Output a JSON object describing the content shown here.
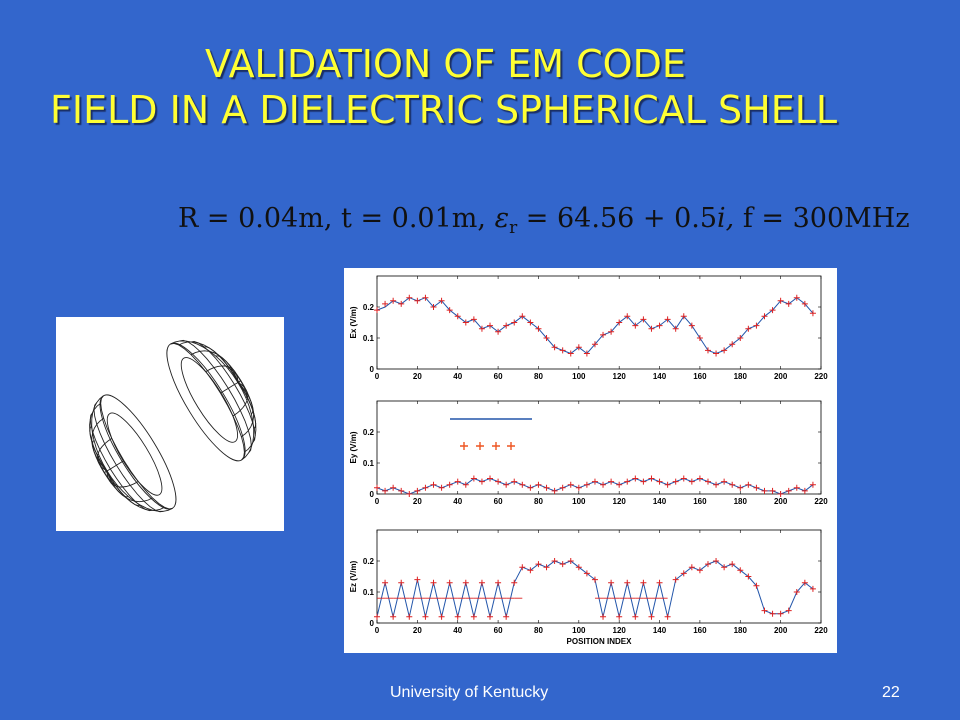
{
  "slide": {
    "title_line1": "VALIDATION OF EM CODE",
    "title_line2": "FIELD IN A DIELECTRIC SPHERICAL SHELL",
    "formula": {
      "R": "R = 0.04m,",
      "t": "t = 0.01m,",
      "eps": "ε",
      "eps_sub": "r",
      "eps_val": "= 64.56 + 0.5",
      "eps_i": "i,",
      "f": "f = 300MHz"
    },
    "footer_left": "University of Kentucky",
    "page_number": "22"
  },
  "colors": {
    "background": "#3366cc",
    "title": "#ffff33",
    "line_series": "#2255aa",
    "marker_series": "#dd2222"
  },
  "chart_data": [
    {
      "type": "line",
      "ylabel": "Ex (V/m)",
      "xlabel": "",
      "xlim": [
        0,
        220
      ],
      "ylim": [
        0,
        0.3
      ],
      "xticks": [
        "0",
        "20",
        "40",
        "60",
        "80",
        "100",
        "120",
        "140",
        "160",
        "180",
        "200",
        "220"
      ],
      "yticks": [
        "0",
        "0.1",
        "0.2"
      ],
      "x": [
        0,
        4,
        8,
        12,
        16,
        20,
        24,
        28,
        32,
        36,
        40,
        44,
        48,
        52,
        56,
        60,
        64,
        68,
        72,
        76,
        80,
        84,
        88,
        92,
        96,
        100,
        104,
        108,
        112,
        116,
        120,
        124,
        128,
        132,
        136,
        140,
        144,
        148,
        152,
        156,
        160,
        164,
        168,
        172,
        176,
        180,
        184,
        188,
        192,
        196,
        200,
        204,
        208,
        212,
        216
      ],
      "series": [
        {
          "style": "line",
          "values": [
            0.19,
            0.2,
            0.22,
            0.21,
            0.23,
            0.22,
            0.23,
            0.2,
            0.22,
            0.19,
            0.17,
            0.15,
            0.16,
            0.13,
            0.14,
            0.12,
            0.14,
            0.15,
            0.17,
            0.15,
            0.13,
            0.1,
            0.07,
            0.06,
            0.05,
            0.07,
            0.05,
            0.08,
            0.11,
            0.12,
            0.15,
            0.17,
            0.14,
            0.16,
            0.13,
            0.14,
            0.16,
            0.13,
            0.17,
            0.14,
            0.1,
            0.06,
            0.05,
            0.06,
            0.08,
            0.1,
            0.13,
            0.14,
            0.17,
            0.19,
            0.22,
            0.21,
            0.23,
            0.21,
            0.18
          ]
        },
        {
          "style": "markers",
          "values": [
            0.19,
            0.21,
            0.22,
            0.21,
            0.23,
            0.22,
            0.23,
            0.2,
            0.22,
            0.19,
            0.17,
            0.15,
            0.16,
            0.13,
            0.14,
            0.12,
            0.14,
            0.15,
            0.17,
            0.15,
            0.13,
            0.1,
            0.07,
            0.06,
            0.05,
            0.07,
            0.05,
            0.08,
            0.11,
            0.12,
            0.15,
            0.17,
            0.14,
            0.16,
            0.13,
            0.14,
            0.16,
            0.13,
            0.17,
            0.14,
            0.1,
            0.06,
            0.05,
            0.06,
            0.08,
            0.1,
            0.13,
            0.14,
            0.17,
            0.19,
            0.22,
            0.21,
            0.23,
            0.21,
            0.18
          ]
        }
      ]
    },
    {
      "type": "line",
      "ylabel": "Ey (V/m)",
      "xlabel": "",
      "xlim": [
        0,
        220
      ],
      "ylim": [
        0,
        0.3
      ],
      "xticks": [
        "0",
        "20",
        "40",
        "60",
        "80",
        "100",
        "120",
        "140",
        "160",
        "180",
        "200",
        "220"
      ],
      "yticks": [
        "0",
        "0.1",
        "0.2"
      ],
      "x": [
        0,
        4,
        8,
        12,
        16,
        20,
        24,
        28,
        32,
        36,
        40,
        44,
        48,
        52,
        56,
        60,
        64,
        68,
        72,
        76,
        80,
        84,
        88,
        92,
        96,
        100,
        104,
        108,
        112,
        116,
        120,
        124,
        128,
        132,
        136,
        140,
        144,
        148,
        152,
        156,
        160,
        164,
        168,
        172,
        176,
        180,
        184,
        188,
        192,
        196,
        200,
        204,
        208,
        212,
        216
      ],
      "series": [
        {
          "style": "line",
          "values": [
            0.02,
            0.01,
            0.02,
            0.01,
            0.0,
            0.01,
            0.02,
            0.03,
            0.02,
            0.03,
            0.04,
            0.03,
            0.05,
            0.04,
            0.05,
            0.04,
            0.03,
            0.04,
            0.03,
            0.02,
            0.03,
            0.02,
            0.01,
            0.02,
            0.03,
            0.02,
            0.03,
            0.04,
            0.03,
            0.04,
            0.03,
            0.04,
            0.05,
            0.04,
            0.05,
            0.04,
            0.03,
            0.04,
            0.05,
            0.04,
            0.05,
            0.04,
            0.03,
            0.04,
            0.03,
            0.02,
            0.03,
            0.02,
            0.01,
            0.01,
            0.0,
            0.01,
            0.02,
            0.01,
            0.03
          ]
        },
        {
          "style": "markers",
          "values": [
            0.02,
            0.01,
            0.02,
            0.01,
            0.0,
            0.01,
            0.02,
            0.03,
            0.02,
            0.03,
            0.04,
            0.03,
            0.05,
            0.04,
            0.05,
            0.04,
            0.03,
            0.04,
            0.03,
            0.02,
            0.03,
            0.02,
            0.01,
            0.02,
            0.03,
            0.02,
            0.03,
            0.04,
            0.03,
            0.04,
            0.03,
            0.04,
            0.05,
            0.04,
            0.05,
            0.04,
            0.03,
            0.04,
            0.05,
            0.04,
            0.05,
            0.04,
            0.03,
            0.04,
            0.03,
            0.02,
            0.03,
            0.02,
            0.01,
            0.01,
            0.0,
            0.01,
            0.02,
            0.01,
            0.03
          ]
        }
      ]
    },
    {
      "type": "line",
      "ylabel": "Ez (V/m)",
      "xlabel": "POSITION INDEX",
      "xlim": [
        0,
        220
      ],
      "ylim": [
        0,
        0.3
      ],
      "xticks": [
        "0",
        "20",
        "40",
        "60",
        "80",
        "100",
        "120",
        "140",
        "160",
        "180",
        "200",
        "220"
      ],
      "yticks": [
        "0",
        "0.1",
        "0.2"
      ],
      "x": [
        0,
        4,
        8,
        12,
        16,
        20,
        24,
        28,
        32,
        36,
        40,
        44,
        48,
        52,
        56,
        60,
        64,
        68,
        72,
        76,
        80,
        84,
        88,
        92,
        96,
        100,
        104,
        108,
        112,
        116,
        120,
        124,
        128,
        132,
        136,
        140,
        144,
        148,
        152,
        156,
        160,
        164,
        168,
        172,
        176,
        180,
        184,
        188,
        192,
        196,
        200,
        204,
        208,
        212,
        216
      ],
      "series": [
        {
          "style": "line",
          "values": [
            0.02,
            0.13,
            0.02,
            0.13,
            0.02,
            0.14,
            0.02,
            0.13,
            0.02,
            0.13,
            0.02,
            0.13,
            0.02,
            0.13,
            0.02,
            0.13,
            0.02,
            0.13,
            0.18,
            0.17,
            0.19,
            0.18,
            0.2,
            0.19,
            0.2,
            0.18,
            0.16,
            0.14,
            0.02,
            0.13,
            0.02,
            0.13,
            0.02,
            0.13,
            0.02,
            0.13,
            0.02,
            0.14,
            0.16,
            0.18,
            0.17,
            0.19,
            0.2,
            0.18,
            0.19,
            0.17,
            0.15,
            0.12,
            0.04,
            0.03,
            0.03,
            0.04,
            0.1,
            0.13,
            0.11
          ]
        },
        {
          "style": "markers",
          "values": [
            0.02,
            0.13,
            0.02,
            0.13,
            0.02,
            0.14,
            0.02,
            0.13,
            0.02,
            0.13,
            0.02,
            0.13,
            0.02,
            0.13,
            0.02,
            0.13,
            0.02,
            0.13,
            0.18,
            0.17,
            0.19,
            0.18,
            0.2,
            0.19,
            0.2,
            0.18,
            0.16,
            0.14,
            0.02,
            0.13,
            0.02,
            0.13,
            0.02,
            0.13,
            0.02,
            0.13,
            0.02,
            0.14,
            0.16,
            0.18,
            0.17,
            0.19,
            0.2,
            0.18,
            0.19,
            0.17,
            0.15,
            0.12,
            0.04,
            0.03,
            0.03,
            0.04,
            0.1,
            0.13,
            0.11
          ]
        },
        {
          "style": "reference",
          "x": [
            0,
            4,
            8,
            12,
            16,
            20,
            24,
            28,
            32,
            36,
            40,
            44,
            48,
            52,
            56,
            60,
            64,
            68,
            72,
            108,
            112,
            116,
            120,
            124,
            128,
            132,
            136,
            140,
            144
          ],
          "values": [
            0.08,
            0.08,
            0.08,
            0.08,
            0.08,
            0.08,
            0.08,
            0.08,
            0.08,
            0.08,
            0.08,
            0.08,
            0.08,
            0.08,
            0.08,
            0.08,
            0.08,
            0.08,
            0.08,
            0.08,
            0.08,
            0.08,
            0.08,
            0.08,
            0.08,
            0.08,
            0.08,
            0.08,
            0.08
          ]
        }
      ]
    }
  ]
}
